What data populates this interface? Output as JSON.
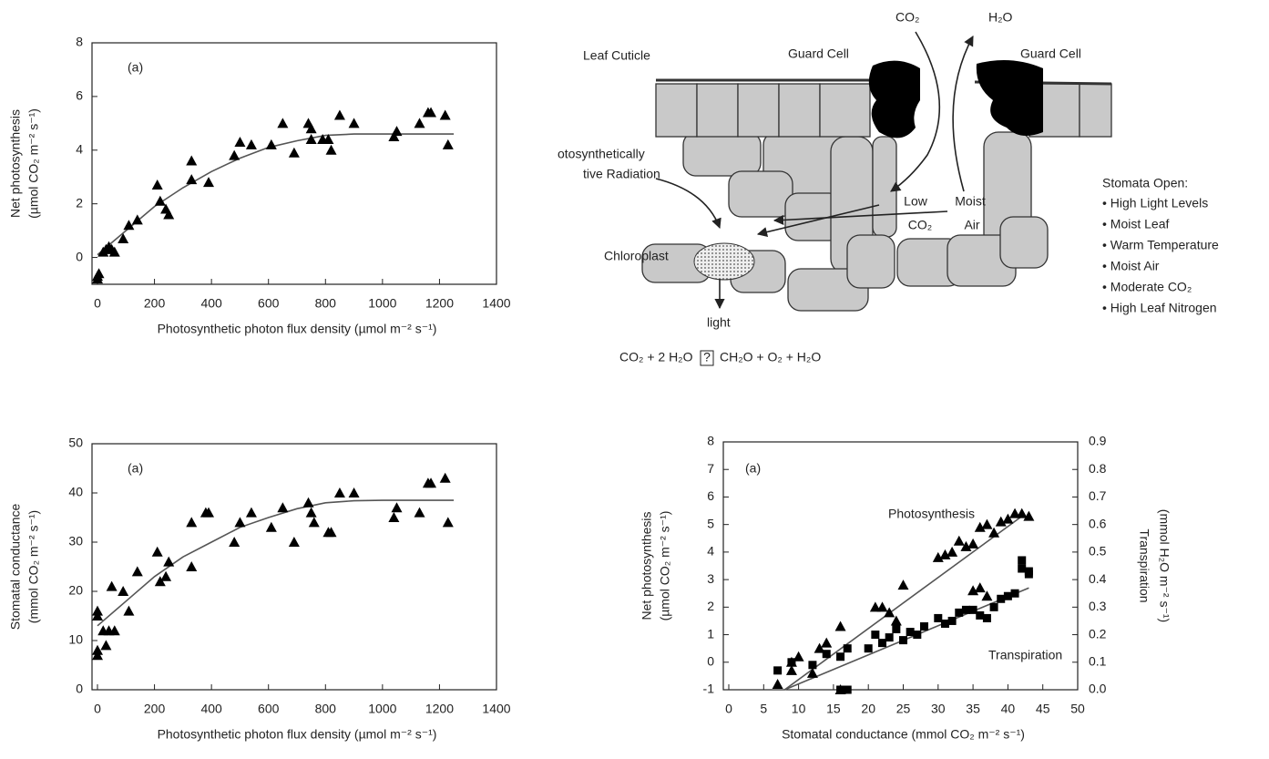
{
  "chart_data": [
    {
      "type": "scatter",
      "annotations": [
        "(a)"
      ],
      "xlabel": "Photosynthetic photon flux density (µmol m⁻² s⁻¹)",
      "ylabel": [
        "Net photosynthesis",
        "(µmol CO₂ m⁻² s⁻¹)"
      ],
      "xlim": [
        0,
        1400
      ],
      "ylim": [
        -1,
        8
      ],
      "xticks": [
        0,
        200,
        400,
        600,
        800,
        1000,
        1200,
        1400
      ],
      "yticks": [
        0,
        2,
        4,
        6,
        8
      ],
      "series": [
        {
          "marker": "triangle",
          "color": "#000000",
          "x": [
            0,
            0,
            5,
            20,
            30,
            40,
            50,
            60,
            90,
            110,
            140,
            210,
            220,
            240,
            250,
            330,
            330,
            390,
            480,
            500,
            540,
            610,
            650,
            690,
            740,
            750,
            750,
            790,
            810,
            820,
            850,
            900,
            1040,
            1050,
            1130,
            1160,
            1170,
            1220,
            1230
          ],
          "values": [
            -0.7,
            -0.8,
            -0.6,
            0.2,
            0.3,
            0.4,
            0.3,
            0.2,
            0.7,
            1.2,
            1.4,
            2.7,
            2.1,
            1.8,
            1.6,
            3.6,
            2.9,
            2.8,
            3.8,
            4.3,
            4.2,
            4.2,
            5.0,
            3.9,
            5.0,
            4.8,
            4.4,
            4.4,
            4.4,
            4.0,
            5.3,
            5.0,
            4.5,
            4.7,
            5.0,
            5.4,
            5.4,
            5.3,
            4.2
          ]
        }
      ],
      "curves": [
        {
          "color": "#555555",
          "x": [
            0,
            100,
            200,
            300,
            400,
            500,
            600,
            700,
            800,
            900,
            1000,
            1100,
            1250
          ],
          "values": [
            0.1,
            1.0,
            1.9,
            2.6,
            3.2,
            3.7,
            4.1,
            4.35,
            4.55,
            4.6,
            4.6,
            4.6,
            4.6
          ]
        }
      ]
    },
    {
      "type": "scatter",
      "annotations": [
        "(a)"
      ],
      "xlabel": "Photosynthetic photon flux density (µmol m⁻² s⁻¹)",
      "ylabel": [
        "Stomatal conductance",
        "(mmol CO₂ m⁻² s⁻¹)"
      ],
      "xlim": [
        0,
        1400
      ],
      "ylim": [
        0,
        50
      ],
      "xticks": [
        0,
        200,
        400,
        600,
        800,
        1000,
        1200,
        1400
      ],
      "yticks": [
        0,
        10,
        20,
        30,
        40,
        50
      ],
      "series": [
        {
          "marker": "triangle",
          "color": "#000000",
          "x": [
            0,
            0,
            0,
            0,
            20,
            30,
            40,
            50,
            60,
            90,
            110,
            140,
            210,
            220,
            240,
            250,
            330,
            330,
            380,
            390,
            480,
            500,
            540,
            610,
            650,
            690,
            740,
            750,
            760,
            810,
            820,
            850,
            900,
            1040,
            1050,
            1130,
            1160,
            1170,
            1220,
            1230
          ],
          "values": [
            16,
            15,
            8,
            7,
            12,
            9,
            12,
            21,
            12,
            20,
            16,
            24,
            28,
            22,
            23,
            26,
            34,
            25,
            36,
            36,
            30,
            34,
            36,
            33,
            37,
            30,
            38,
            36,
            34,
            32,
            32,
            40,
            40,
            35,
            37,
            36,
            42,
            42,
            43,
            34
          ]
        }
      ],
      "curves": [
        {
          "color": "#555555",
          "x": [
            0,
            100,
            200,
            300,
            400,
            500,
            600,
            700,
            800,
            900,
            1000,
            1100,
            1250
          ],
          "values": [
            13,
            18,
            23,
            27,
            30,
            33,
            35,
            36.8,
            38,
            38.4,
            38.5,
            38.5,
            38.5
          ]
        }
      ]
    },
    {
      "type": "scatter",
      "annotations": [
        "(a)",
        "Photosynthesis",
        "Transpiration"
      ],
      "xlabel": "Stomatal conductance (mmol CO₂ m⁻² s⁻¹)",
      "ylabel": [
        "Net photosynthesis",
        "(µmol CO₂ m⁻² s⁻¹)"
      ],
      "y2label": [
        "Transpiration",
        "(mmol H₂O m⁻² s⁻¹)"
      ],
      "xlim": [
        0,
        50
      ],
      "ylim": [
        -1,
        8
      ],
      "y2lim": [
        0,
        0.9
      ],
      "xticks": [
        0,
        5,
        10,
        15,
        20,
        25,
        30,
        35,
        40,
        45,
        50
      ],
      "yticks": [
        -1,
        0,
        1,
        2,
        3,
        4,
        5,
        6,
        7,
        8
      ],
      "y2ticks": [
        {
          "value": 0,
          "label": "0.0"
        },
        0.1,
        0.2,
        0.3,
        0.4,
        0.5,
        0.6,
        0.7,
        0.8,
        0.9
      ],
      "series": [
        {
          "marker": "triangle",
          "color": "#000000",
          "x": [
            7,
            9,
            9,
            10,
            12,
            13,
            14,
            16,
            16,
            21,
            22,
            23,
            25,
            24,
            30,
            31,
            32,
            33,
            34,
            35,
            36,
            37,
            38,
            39,
            40,
            41,
            42,
            43,
            35,
            36,
            37
          ],
          "values": [
            -0.8,
            0,
            -0.3,
            0.2,
            -0.4,
            0.5,
            0.7,
            1.3,
            -1,
            2,
            2,
            1.8,
            2.8,
            1.5,
            3.8,
            3.9,
            4,
            4.4,
            4.2,
            4.3,
            4.9,
            5,
            4.7,
            5.1,
            5.2,
            5.4,
            5.4,
            5.3,
            2.6,
            2.7,
            2.4
          ]
        },
        {
          "marker": "square",
          "color": "#000000",
          "axis": "y2",
          "x": [
            7,
            9,
            12,
            14,
            16,
            17,
            16,
            17,
            20,
            21,
            22,
            23,
            24,
            25,
            26,
            27,
            28,
            30,
            31,
            32,
            33,
            34,
            35,
            36,
            37,
            38,
            39,
            40,
            41,
            42,
            42,
            43,
            43
          ],
          "values": [
            0.07,
            0.1,
            0.09,
            0.13,
            0,
            0,
            0.12,
            0.15,
            0.15,
            0.2,
            0.17,
            0.19,
            0.22,
            0.18,
            0.21,
            0.2,
            0.23,
            0.26,
            0.24,
            0.25,
            0.28,
            0.29,
            0.29,
            0.27,
            0.26,
            0.3,
            0.33,
            0.34,
            0.35,
            0.47,
            0.44,
            0.42,
            0.43
          ]
        }
      ],
      "curves": [
        {
          "color": "#555555",
          "x": [
            8,
            42
          ],
          "values": [
            -1,
            5.3
          ]
        },
        {
          "color": "#555555",
          "axis": "y2",
          "x": [
            8,
            43
          ],
          "values": [
            0,
            0.37
          ]
        }
      ]
    }
  ],
  "diagram": {
    "co2_top": "CO₂",
    "h2o_top": "H₂O",
    "leaf_cuticle": "Leaf Cuticle",
    "guard_cell_left": "Guard Cell",
    "guard_cell_right": "Guard Cell",
    "radiation": [
      "otosynthetically",
      "tive Radiation"
    ],
    "low_co2": [
      "Low",
      "CO₂"
    ],
    "moist_air": [
      "Moist",
      "Air"
    ],
    "chloroplast": "Chloroplast",
    "light": "light",
    "equation": [
      "CO₂ + 2 H₂O",
      "?",
      "CH₂O + O₂ + H₂O"
    ],
    "stomata_title": "Stomata Open:",
    "stomata_items": [
      "• High Light Levels",
      "• Moist Leaf",
      "• Warm Temperature",
      "• Moist Air",
      "• Moderate CO₂",
      "• High Leaf Nitrogen"
    ]
  }
}
